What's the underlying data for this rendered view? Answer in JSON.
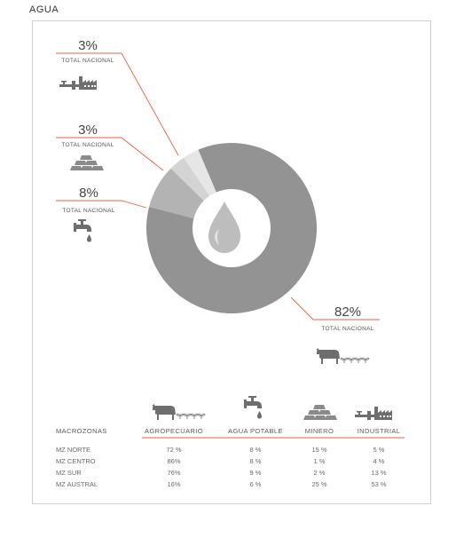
{
  "page": {
    "title": "AGUA"
  },
  "chart_data": {
    "type": "pie",
    "style": "donut",
    "center_icon": "water-drop-icon",
    "slices": [
      {
        "sector": "industrial",
        "value": 3,
        "label": "3%",
        "sublabel": "TOTAL NACIONAL",
        "icon": "factory-icon",
        "color": "#e6e6e6"
      },
      {
        "sector": "minero",
        "value": 3,
        "label": "3%",
        "sublabel": "TOTAL NACIONAL",
        "icon": "gold-bars-icon",
        "color": "#d4d4d4"
      },
      {
        "sector": "agua_potable",
        "value": 8,
        "label": "8%",
        "sublabel": "TOTAL NACIONAL",
        "icon": "faucet-icon",
        "color": "#b3b3b3"
      },
      {
        "sector": "agropecuario",
        "value": 82,
        "label": "82%",
        "sublabel": "TOTAL NACIONAL",
        "icon": "cow-plants-icon",
        "color": "#939393"
      }
    ],
    "leader_color": "#e8623d",
    "table": {
      "row_header": "MACROZONAS",
      "columns": [
        {
          "label": "AGROPECUARIO",
          "icon": "cow-plants-icon"
        },
        {
          "label": "AGUA POTABLE",
          "icon": "faucet-icon"
        },
        {
          "label": "MINERO",
          "icon": "gold-bars-icon"
        },
        {
          "label": "INDUSTRIAL",
          "icon": "factory-icon"
        }
      ],
      "rows": [
        {
          "label": "MZ NORTE",
          "values": [
            "72 %",
            "8 %",
            "15 %",
            "5 %"
          ]
        },
        {
          "label": "MZ CENTRO",
          "values": [
            "86%",
            "8 %",
            "1 %",
            "4 %"
          ]
        },
        {
          "label": "MZ SUR",
          "values": [
            "76%",
            "9 %",
            "2 %",
            "13 %"
          ]
        },
        {
          "label": "MZ AUSTRAL",
          "values": [
            "16%",
            "6 %",
            "25 %",
            "53 %"
          ]
        }
      ]
    }
  }
}
